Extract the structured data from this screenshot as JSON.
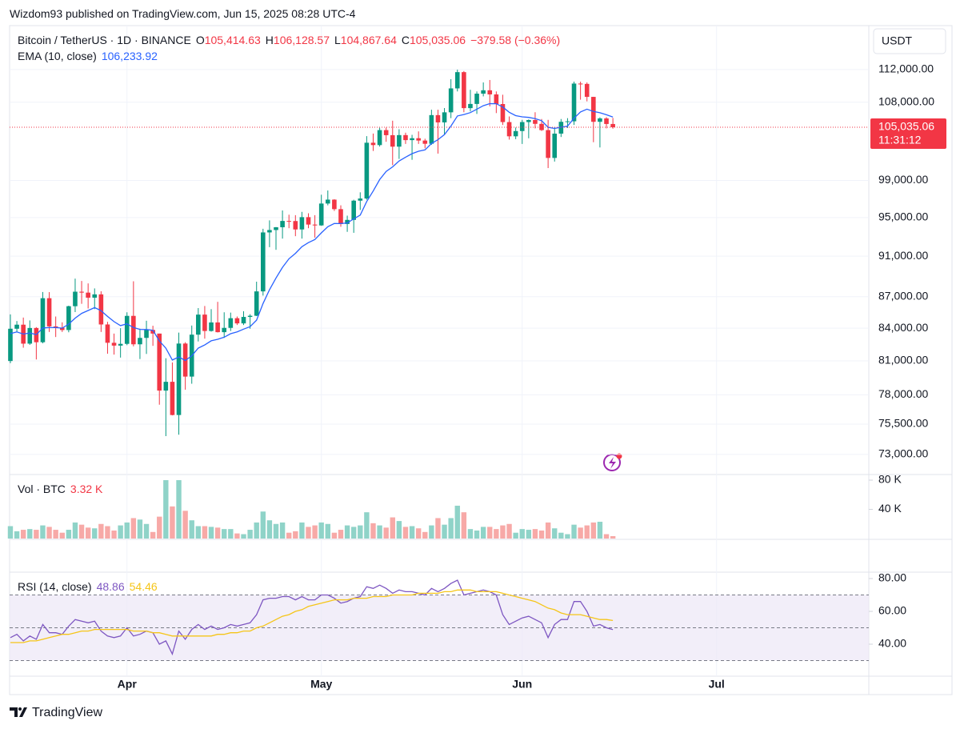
{
  "header": {
    "byline": "Wizdom93 published on TradingView.com, Jun 15, 2025 08:28 UTC-4"
  },
  "footer": {
    "brand": "TradingView"
  },
  "chart_data": [
    {
      "type": "candlestick",
      "title": "Bitcoin / TetherUS · 1D · BINANCE",
      "ohlc_labels": [
        {
          "key": "O",
          "value": "105,414.63"
        },
        {
          "key": "H",
          "value": "106,128.57"
        },
        {
          "key": "L",
          "value": "104,867.64"
        },
        {
          "key": "C",
          "value": "105,035.06"
        }
      ],
      "change": "−379.58 (−0.36%)",
      "axis_unit": "USDT",
      "up_color": "#089981",
      "down_color": "#f23645",
      "log_scale": true,
      "grid": true,
      "xlim": [
        -0.12,
        132.5
      ],
      "xticks": [
        {
          "value": 18,
          "label": "Apr"
        },
        {
          "value": 48,
          "label": "May"
        },
        {
          "value": 79,
          "label": "Jun"
        },
        {
          "value": 109,
          "label": "Jul"
        }
      ],
      "ylim": [
        71450,
        117600
      ],
      "yticks": [
        {
          "value": 73000,
          "label": "73,000.00"
        },
        {
          "value": 75500,
          "label": "75,500.00"
        },
        {
          "value": 78000,
          "label": "78,000.00"
        },
        {
          "value": 81000,
          "label": "81,000.00"
        },
        {
          "value": 84000,
          "label": "84,000.00"
        },
        {
          "value": 87000,
          "label": "87,000.00"
        },
        {
          "value": 91000,
          "label": "91,000.00"
        },
        {
          "value": 95000,
          "label": "95,000.00"
        },
        {
          "value": 99000,
          "label": "99,000.00"
        },
        {
          "value": 108000,
          "label": "108,000.00"
        },
        {
          "value": 112000,
          "label": "112,000.00"
        }
      ],
      "open": [
        80990,
        83950,
        84330,
        82570,
        84020,
        82700,
        86850,
        84170,
        84040,
        83830,
        86080,
        87480,
        87390,
        86900,
        87220,
        84350,
        82650,
        82390,
        82550,
        85160,
        82510,
        83100,
        83840,
        83500,
        78370,
        79140,
        76270,
        82580,
        79600,
        83400,
        85280,
        83740,
        84540,
        83630,
        84030,
        84940,
        84450,
        85060,
        85170,
        87510,
        93440,
        93690,
        93980,
        94640,
        94630,
        93750,
        95040,
        94260,
        94170,
        96490,
        96910,
        95890,
        94320,
        94750,
        96800,
        97030,
        103240,
        102970,
        104700,
        104110,
        102790,
        104120,
        103540,
        103760,
        103490,
        103120,
        106460,
        105600,
        106790,
        109670,
        111670,
        107290,
        107790,
        109030,
        109440,
        108940,
        107780,
        105640,
        103980,
        104590,
        105640,
        105880,
        105430,
        104700,
        101510,
        104290,
        105670,
        105730,
        110260,
        110220,
        108640,
        105670,
        106070,
        105414.63
      ],
      "high": [
        85300,
        84670,
        85000,
        84730,
        84100,
        87450,
        87440,
        85100,
        84550,
        86130,
        88760,
        88530,
        88290,
        87800,
        87520,
        84600,
        83500,
        84000,
        85500,
        88500,
        83950,
        84700,
        84230,
        83500,
        81240,
        80860,
        83590,
        82700,
        84250,
        85900,
        86100,
        85800,
        86500,
        85500,
        85470,
        85100,
        85600,
        85320,
        88460,
        93820,
        94700,
        94000,
        95750,
        95300,
        95250,
        95600,
        95450,
        95250,
        97440,
        97900,
        96950,
        96300,
        95200,
        96900,
        97700,
        104000,
        104300,
        104970,
        105000,
        105800,
        104800,
        104400,
        104150,
        104550,
        103700,
        107100,
        107100,
        107300,
        110800,
        111980,
        111800,
        109500,
        109300,
        110400,
        110700,
        109300,
        108900,
        106300,
        105000,
        105900,
        105950,
        106800,
        106000,
        105900,
        105000,
        106000,
        106100,
        110500,
        110500,
        110400,
        108650,
        106200,
        106220,
        106128.57
      ],
      "low": [
        80800,
        83650,
        82200,
        82460,
        81130,
        82600,
        83650,
        83180,
        83650,
        83620,
        85520,
        86310,
        85860,
        85800,
        83650,
        81650,
        81570,
        81300,
        82430,
        82320,
        81170,
        81630,
        82370,
        77150,
        74500,
        76240,
        74620,
        78450,
        78970,
        82770,
        83030,
        83680,
        83600,
        83100,
        83740,
        84300,
        84300,
        83950,
        85140,
        87100,
        91920,
        91650,
        92800,
        93880,
        93050,
        92800,
        93880,
        92900,
        94130,
        96300,
        95700,
        94030,
        93500,
        93400,
        95800,
        96900,
        102300,
        102800,
        103350,
        100700,
        101400,
        103100,
        101300,
        103100,
        102600,
        103000,
        102000,
        104200,
        106100,
        109300,
        106800,
        106900,
        106600,
        108700,
        107500,
        106700,
        105300,
        103600,
        103650,
        103100,
        103750,
        104900,
        104600,
        100370,
        101100,
        103900,
        104950,
        105300,
        108300,
        108100,
        103300,
        102700,
        104900,
        104867.64
      ],
      "close": [
        83950,
        84330,
        82570,
        84020,
        82700,
        86850,
        84170,
        84040,
        83830,
        86080,
        87480,
        87390,
        86900,
        87220,
        84350,
        82650,
        82390,
        82550,
        85160,
        82510,
        83100,
        83840,
        83500,
        78370,
        79140,
        76270,
        82580,
        79600,
        83400,
        85280,
        83740,
        84540,
        83630,
        84030,
        84940,
        84450,
        85060,
        85170,
        87510,
        93440,
        93690,
        93980,
        94640,
        94630,
        93750,
        95040,
        94260,
        94170,
        96490,
        96910,
        95890,
        94320,
        94750,
        96800,
        97030,
        103240,
        102970,
        104700,
        104110,
        102790,
        104120,
        103540,
        103760,
        103490,
        103120,
        106460,
        105600,
        106790,
        109670,
        111670,
        107290,
        107790,
        109030,
        109440,
        108940,
        107780,
        105640,
        103980,
        104590,
        105640,
        105880,
        105430,
        104700,
        101510,
        104290,
        105670,
        105730,
        110260,
        110220,
        108640,
        105670,
        106070,
        105414.63,
        105035.06
      ],
      "ema": {
        "name": "EMA (10, close)",
        "value_label": "106,233.92",
        "color": "#2962ff",
        "values": [
          83500,
          83651,
          83454,
          83558,
          83402,
          84029,
          84055,
          84052,
          84012,
          84388,
          84950,
          85394,
          85668,
          85950,
          85659,
          85112,
          84617,
          84241,
          84408,
          84063,
          83888,
          83879,
          83810,
          82821,
          82152,
          81083,
          81355,
          81036,
          81466,
          82159,
          82446,
          82827,
          82973,
          83165,
          83488,
          83663,
          83917,
          84145,
          84757,
          86336,
          87673,
          88820,
          89878,
          90742,
          91289,
          91971,
          92387,
          92711,
          93398,
          94036,
          94373,
          94363,
          94433,
          94863,
          95257,
          96708,
          97846,
          99092,
          100004,
          100510,
          101166,
          101598,
          101991,
          102264,
          102420,
          103154,
          103599,
          104179,
          105177,
          106357,
          106527,
          106757,
          107170,
          107583,
          107830,
          107821,
          107424,
          106798,
          106397,
          106259,
          106190,
          106052,
          105806,
          105025,
          104891,
          105033,
          105160,
          106087,
          106838,
          107166,
          106894,
          106744,
          106502,
          106233.92
        ]
      },
      "last_price": {
        "value": 105035.06,
        "label": "105,035.06",
        "countdown": "11:31:12",
        "color": "#f23645"
      }
    },
    {
      "type": "bar",
      "title": "Vol · BTC",
      "value_label": "3.32 K",
      "up_color": "#8fd3c8",
      "down_color": "#f7a9a7",
      "ylim": [
        0,
        86600
      ],
      "yticks": [
        {
          "value": 40000,
          "label": "40 K"
        },
        {
          "value": 80000,
          "label": "80 K"
        }
      ],
      "values": [
        17000,
        10000,
        12000,
        13000,
        12000,
        18000,
        16000,
        12000,
        8000,
        12000,
        22000,
        19000,
        15000,
        14000,
        20000,
        17000,
        11000,
        18000,
        22000,
        28000,
        26000,
        20000,
        9000,
        30000,
        80000,
        44000,
        80000,
        38000,
        25000,
        17000,
        17000,
        16000,
        15000,
        13000,
        13000,
        7000,
        6000,
        12000,
        22000,
        37000,
        25000,
        20000,
        22000,
        8000,
        10000,
        22000,
        16000,
        18000,
        22000,
        20000,
        8000,
        12000,
        18000,
        16000,
        18000,
        36000,
        21000,
        18000,
        15000,
        29000,
        24000,
        16000,
        17000,
        14000,
        9000,
        18000,
        28000,
        19000,
        28000,
        45000,
        36000,
        13000,
        11000,
        16000,
        16000,
        13000,
        18000,
        20000,
        8000,
        13000,
        12000,
        13000,
        11000,
        22000,
        14000,
        8000,
        6000,
        19000,
        15000,
        18000,
        22000,
        23000,
        6000,
        3320
      ]
    },
    {
      "type": "line",
      "title": "RSI (14, close)",
      "ylim": [
        20.5,
        83.4
      ],
      "yticks": [
        {
          "value": 40,
          "label": "40.00"
        },
        {
          "value": 60,
          "label": "60.00"
        },
        {
          "value": 80,
          "label": "80.00"
        }
      ],
      "levels": [
        30,
        50,
        70
      ],
      "band_color": "#ede7f6",
      "series": [
        {
          "color": "#7e57c2",
          "values": [
            44,
            46,
            42,
            45,
            43,
            52,
            47,
            47,
            46,
            51,
            55,
            54,
            53,
            54,
            48,
            45,
            44,
            45,
            50,
            45,
            46,
            48,
            47,
            40,
            42,
            34,
            48,
            43,
            49,
            52,
            49,
            51,
            49,
            50,
            52,
            51,
            52,
            53,
            58,
            67,
            68,
            68,
            69,
            69,
            67,
            69,
            67,
            67,
            70,
            70,
            68,
            65,
            66,
            68,
            69,
            75,
            74,
            76,
            74,
            71,
            73,
            72,
            72,
            71,
            70,
            74,
            72,
            74,
            77,
            79,
            70,
            71,
            72,
            73,
            72,
            70,
            58,
            52,
            54,
            56,
            57,
            55,
            53,
            44,
            52,
            55,
            55,
            66,
            66,
            60,
            51,
            52,
            50,
            48.86
          ]
        },
        {
          "color": "#f5c518",
          "values": [
            41,
            41,
            41,
            42,
            42,
            43,
            44,
            45,
            46,
            46,
            47,
            48,
            48,
            49,
            49,
            49,
            49,
            49,
            49,
            48,
            48,
            48,
            47,
            47,
            46,
            45,
            45,
            45,
            45,
            45,
            45,
            45,
            46,
            46,
            47,
            47,
            48,
            48,
            50,
            51,
            53,
            55,
            57,
            58,
            60,
            61,
            63,
            64,
            65,
            66,
            67,
            67,
            67,
            68,
            68,
            68,
            69,
            69,
            69,
            70,
            70,
            70,
            70,
            71,
            71,
            71,
            71,
            72,
            72,
            73,
            73,
            73,
            72,
            72,
            72,
            72,
            71,
            70,
            69,
            68,
            67,
            66,
            64,
            62,
            61,
            59,
            58,
            58,
            58,
            57,
            56,
            55,
            55,
            54.46
          ]
        }
      ]
    }
  ]
}
